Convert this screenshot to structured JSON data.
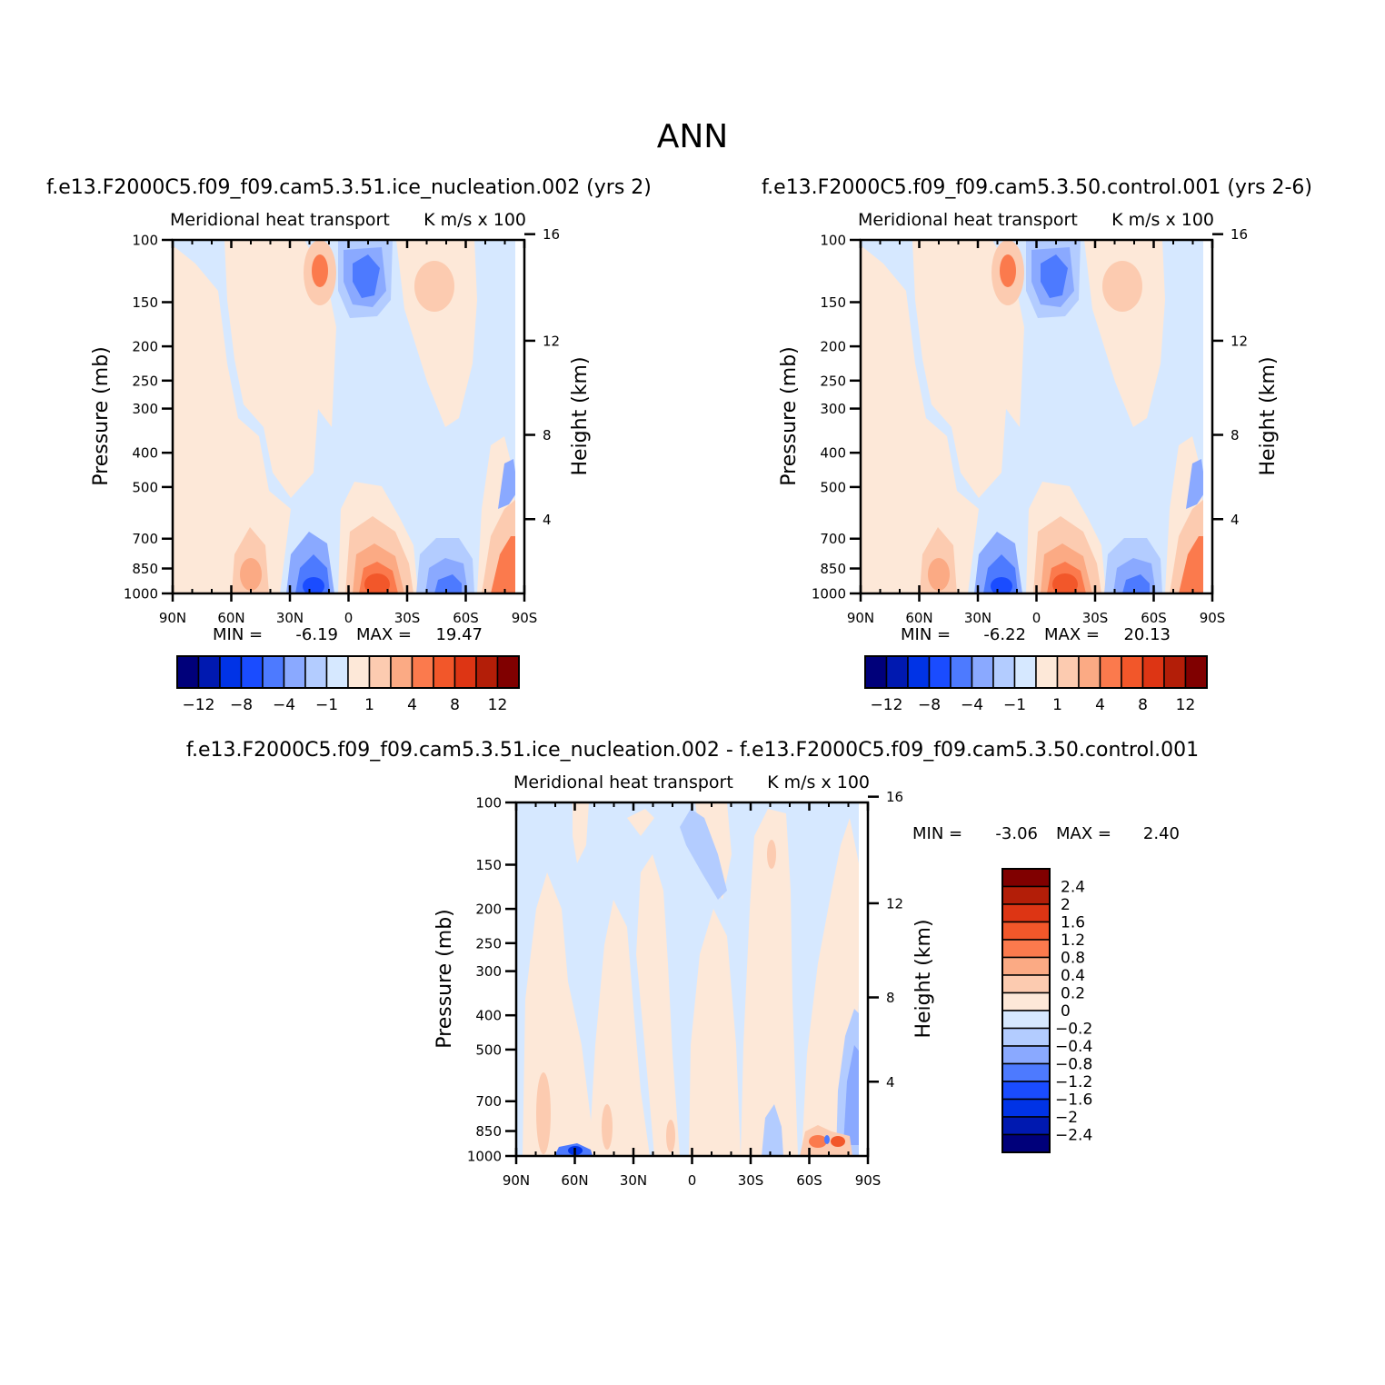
{
  "figure": {
    "title": "ANN"
  },
  "colors": {
    "ramp": [
      "#00007a",
      "#0019b0",
      "#0033e6",
      "#1a4cff",
      "#4d7aff",
      "#8aa9ff",
      "#b3ccff",
      "#d6e8ff",
      "#fde8d8",
      "#fccbb0",
      "#fbaa84",
      "#fb7a4d",
      "#f2572a",
      "#dd3514",
      "#b31e08",
      "#800000"
    ]
  },
  "chart_data": [
    {
      "id": "panel1",
      "type": "heatmap",
      "title": "f.e13.F2000C5.f09_f09.cam5.3.51.ice_nucleation.002 (yrs 2)",
      "subtitle_left": "Meridional heat transport",
      "subtitle_right": "K m/s x 100",
      "xlabel": "",
      "ylabel": "Pressure (mb)",
      "ylabel_right": "Height (km)",
      "x_ticks": [
        "90N",
        "60N",
        "30N",
        "0",
        "30S",
        "60S",
        "90S"
      ],
      "y_ticks": [
        100,
        150,
        200,
        250,
        300,
        400,
        500,
        700,
        850,
        1000
      ],
      "y_right_ticks": [
        16,
        12,
        8,
        4
      ],
      "ylim": [
        1000,
        100
      ],
      "stats": {
        "min_label": "MIN =",
        "min": "-6.19",
        "max_label": "MAX =",
        "max": "19.47"
      },
      "colorbar": {
        "orientation": "horizontal",
        "labels": [
          "-12",
          "-8",
          "-4",
          "-1",
          "1",
          "4",
          "8",
          "12"
        ]
      }
    },
    {
      "id": "panel2",
      "type": "heatmap",
      "title": "f.e13.F2000C5.f09_f09.cam5.3.50.control.001 (yrs 2-6)",
      "subtitle_left": "Meridional heat transport",
      "subtitle_right": "K m/s x 100",
      "xlabel": "",
      "ylabel": "Pressure (mb)",
      "ylabel_right": "Height (km)",
      "x_ticks": [
        "90N",
        "60N",
        "30N",
        "0",
        "30S",
        "60S",
        "90S"
      ],
      "y_ticks": [
        100,
        150,
        200,
        250,
        300,
        400,
        500,
        700,
        850,
        1000
      ],
      "y_right_ticks": [
        16,
        12,
        8,
        4
      ],
      "ylim": [
        1000,
        100
      ],
      "stats": {
        "min_label": "MIN =",
        "min": "-6.22",
        "max_label": "MAX =",
        "max": "20.13"
      },
      "colorbar": {
        "orientation": "horizontal",
        "labels": [
          "-12",
          "-8",
          "-4",
          "-1",
          "1",
          "4",
          "8",
          "12"
        ]
      }
    },
    {
      "id": "panel3",
      "type": "heatmap",
      "title": "f.e13.F2000C5.f09_f09.cam5.3.51.ice_nucleation.002 - f.e13.F2000C5.f09_f09.cam5.3.50.control.001",
      "subtitle_left": "Meridional heat transport",
      "subtitle_right": "K m/s x 100",
      "xlabel": "",
      "ylabel": "Pressure (mb)",
      "ylabel_right": "Height (km)",
      "x_ticks": [
        "90N",
        "60N",
        "30N",
        "0",
        "30S",
        "60S",
        "90S"
      ],
      "y_ticks": [
        100,
        150,
        200,
        250,
        300,
        400,
        500,
        700,
        850,
        1000
      ],
      "y_right_ticks": [
        16,
        12,
        8,
        4
      ],
      "ylim": [
        1000,
        100
      ],
      "stats": {
        "min_label": "MIN =",
        "min": "-3.06",
        "max_label": "MAX =",
        "max": "2.40"
      },
      "colorbar": {
        "orientation": "vertical",
        "labels": [
          "2.4",
          "2",
          "1.6",
          "1.2",
          "0.8",
          "0.4",
          "0.2",
          "0",
          "-0.2",
          "-0.4",
          "-0.8",
          "-1.2",
          "-1.6",
          "-2",
          "-2.4"
        ]
      }
    }
  ]
}
